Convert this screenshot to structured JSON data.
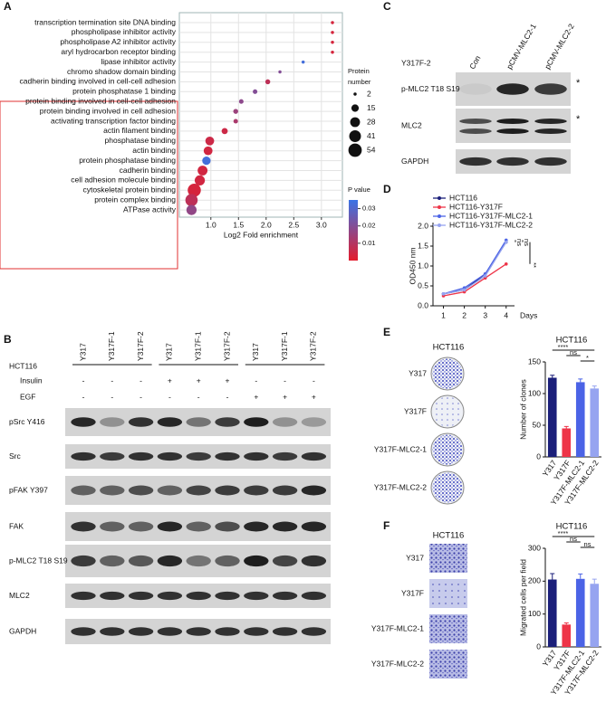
{
  "panel_labels": [
    "A",
    "B",
    "C",
    "D",
    "E",
    "F"
  ],
  "chart_data": [
    {
      "type": "dot",
      "categories": [
        "transcription termination site DNA binding",
        "phospholipase inhibitor activity",
        "phospholipase A2 inhibitor activity",
        "aryl hydrocarbon receptor binding",
        "lipase inhibitor activity",
        "chromo shadow domain binding",
        "cadherin binding involved in cell-cell adhesion",
        "protein phosphatase 1 binding",
        "protein binding involved in cell-cell adhesion",
        "protein binding involved in cell adhesion",
        "activating transcription factor binding",
        "actin filament binding",
        "phosphatase binding",
        "actin binding",
        "protein phosphatase binding",
        "cadherin binding",
        "cell adhesion molecule binding",
        "cytoskeletal protein binding",
        "protein complex binding",
        "ATPase activity"
      ],
      "values": [
        3.2,
        3.2,
        3.2,
        3.2,
        2.67,
        2.25,
        2.03,
        1.8,
        1.55,
        1.45,
        1.45,
        1.25,
        0.98,
        0.95,
        0.92,
        0.85,
        0.8,
        0.7,
        0.65,
        0.65
      ],
      "sizes": [
        2,
        2,
        2,
        2,
        2,
        2,
        6,
        5,
        5,
        6,
        5,
        10,
        22,
        22,
        20,
        28,
        30,
        52,
        45,
        30
      ],
      "pvalues": [
        0.003,
        0.003,
        0.003,
        0.003,
        0.033,
        0.02,
        0.008,
        0.02,
        0.018,
        0.015,
        0.012,
        0.005,
        0.005,
        0.004,
        0.033,
        0.004,
        0.004,
        0.003,
        0.008,
        0.017
      ],
      "xlabel": "Log2 Fold enrichment",
      "xlim": [
        0.43,
        3.38
      ],
      "xticks": [
        {
          "value": 1,
          "label": "1.0"
        },
        {
          "value": 1.5,
          "label": "1.5"
        },
        {
          "value": 2,
          "label": "2.0"
        },
        {
          "value": 2.5,
          "label": "2.5"
        },
        {
          "value": 3,
          "label": "3.0"
        }
      ],
      "grid": true,
      "size_legend": {
        "title_lines": [
          "Protein",
          "number"
        ],
        "values": [
          2,
          15,
          28,
          41,
          54
        ]
      },
      "color_legend": {
        "title": "P value",
        "clim": [
          0,
          0.035
        ],
        "ticks": [
          0.01,
          0.02,
          0.03
        ],
        "colors": [
          "#e41c2c",
          "#3a74e6"
        ]
      }
    },
    {
      "type": "line",
      "x": [
        1,
        2,
        3,
        4
      ],
      "xlim": [
        0.5,
        4.4
      ],
      "xticks": [
        1,
        2,
        3,
        4
      ],
      "xlabel": "Days",
      "ylabel": "OD450 nm",
      "ylim": [
        0,
        2
      ],
      "yticks": [
        {
          "value": 0,
          "label": "0.0"
        },
        {
          "value": 0.5,
          "label": "0.5"
        },
        {
          "value": 1,
          "label": "1.0"
        },
        {
          "value": 1.5,
          "label": "1.5"
        },
        {
          "value": 2,
          "label": "2.0"
        }
      ],
      "series": [
        {
          "name": "HCT116",
          "color": "#1b1f7a",
          "values": [
            0.3,
            0.4,
            0.8,
            1.6
          ]
        },
        {
          "name": "HCT116-Y317F",
          "color": "#ee3448",
          "values": [
            0.25,
            0.35,
            0.7,
            1.05
          ]
        },
        {
          "name": "HCT116-Y317F-MLC2-1",
          "color": "#4b63e6",
          "values": [
            0.3,
            0.45,
            0.8,
            1.65
          ]
        },
        {
          "name": "HCT116-Y317F-MLC2-2",
          "color": "#96a4f0",
          "values": [
            0.3,
            0.4,
            0.75,
            1.6
          ]
        }
      ],
      "annotations": [
        "ns",
        "ns",
        "**"
      ]
    },
    {
      "type": "bar",
      "title": "HCT116",
      "ylabel": "Number of clones",
      "categories": [
        "Y317",
        "Y317F",
        "Y317F-MLC2-1",
        "Y317F-MLC2-2"
      ],
      "values": [
        125,
        45,
        118,
        108
      ],
      "errors": [
        4,
        3,
        5,
        4
      ],
      "colors": [
        "#1b1f7a",
        "#ee3448",
        "#4b63e6",
        "#96a4f0"
      ],
      "ylim": [
        0,
        150
      ],
      "yticks": [
        0,
        50,
        100,
        150
      ],
      "significance": [
        "****",
        "ns",
        "*"
      ]
    },
    {
      "type": "bar",
      "title": "HCT116",
      "ylabel": "Migrated cells per field",
      "categories": [
        "Y317",
        "Y317F",
        "Y317F-MLC2-1",
        "Y317F-MLC2-2"
      ],
      "values": [
        205,
        68,
        207,
        192
      ],
      "errors": [
        18,
        5,
        15,
        14
      ],
      "colors": [
        "#1b1f7a",
        "#ee3448",
        "#4b63e6",
        "#96a4f0"
      ],
      "ylim": [
        0,
        300
      ],
      "yticks": [
        0,
        100,
        200,
        300
      ],
      "significance": [
        "****",
        "ns",
        "ns"
      ]
    }
  ],
  "western_b": {
    "lanes": [
      "Y317",
      "Y317F-1",
      "Y317F-2",
      "Y317",
      "Y317F-1",
      "Y317F-2",
      "Y317",
      "Y317F-1",
      "Y317F-2"
    ],
    "cell_line": "HCT116",
    "treatments": [
      {
        "name": "Insulin",
        "signs": [
          "-",
          "-",
          "-",
          "+",
          "+",
          "+",
          "-",
          "-",
          "-"
        ]
      },
      {
        "name": "EGF",
        "signs": [
          "-",
          "-",
          "-",
          "-",
          "-",
          "-",
          "+",
          "+",
          "+"
        ]
      }
    ],
    "blots": [
      "pSrc Y416",
      "Src",
      "pFAK Y397",
      "FAK",
      "p-MLC2 T18 S19",
      "MLC2",
      "GAPDH"
    ]
  },
  "western_c": {
    "sample": "Y317F-2",
    "lanes": [
      "Con",
      "pCMV-MLC2-1",
      "pCMV-MLC2-2"
    ],
    "blots": [
      "p-MLC2 T18 S19",
      "MLC2",
      "GAPDH"
    ],
    "asterisks": [
      "*",
      "*"
    ]
  },
  "colony_images": {
    "title": "HCT116",
    "labels": [
      "Y317",
      "Y317F",
      "Y317F-MLC2-1",
      "Y317F-MLC2-2"
    ]
  },
  "migration_images": {
    "title": "HCT116",
    "labels": [
      "Y317",
      "Y317F",
      "Y317F-MLC2-1",
      "Y317F-MLC2-2"
    ]
  }
}
